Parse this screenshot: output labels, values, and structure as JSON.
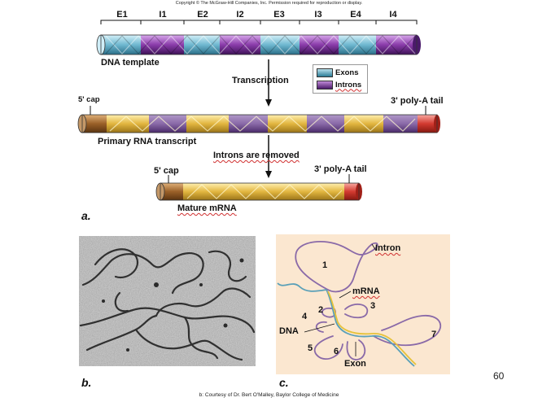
{
  "copyright": "Copyright © The McGraw-Hill Companies, Inc. Permission required for reproduction or display.",
  "segments": [
    "E1",
    "I1",
    "E2",
    "I2",
    "E3",
    "I3",
    "E4",
    "I4"
  ],
  "dna_template_label": "DNA template",
  "transcription_label": "Transcription",
  "legend": {
    "exons": "Exons",
    "introns": "Introns"
  },
  "primary": {
    "cap": "5' cap",
    "tail": "3' poly-A tail",
    "label": "Primary RNA transcript"
  },
  "introns_removed_label": "Introns are removed",
  "mature": {
    "cap": "5' cap",
    "tail": "3' poly-A tail",
    "label": "Mature mRNA"
  },
  "panel_a": "a.",
  "panel_b": "b.",
  "panel_c": "c.",
  "sketch": {
    "intron": "Intron",
    "mrna": "mRNA",
    "dna": "DNA",
    "exon": "Exon",
    "loops": [
      "1",
      "2",
      "3",
      "4",
      "5",
      "6",
      "7"
    ]
  },
  "footer": "b: Courtesy of Dr. Bert O'Malley, Baylor College of Medicine",
  "page_number": "60",
  "colors": {
    "exon": "#3a8fae",
    "intron": "#6a2a8a",
    "rna_exon": "#d9b23a",
    "cap": "#8a5a2a",
    "tail": "#c83030",
    "sketch_bg": "#fbe7d0"
  }
}
